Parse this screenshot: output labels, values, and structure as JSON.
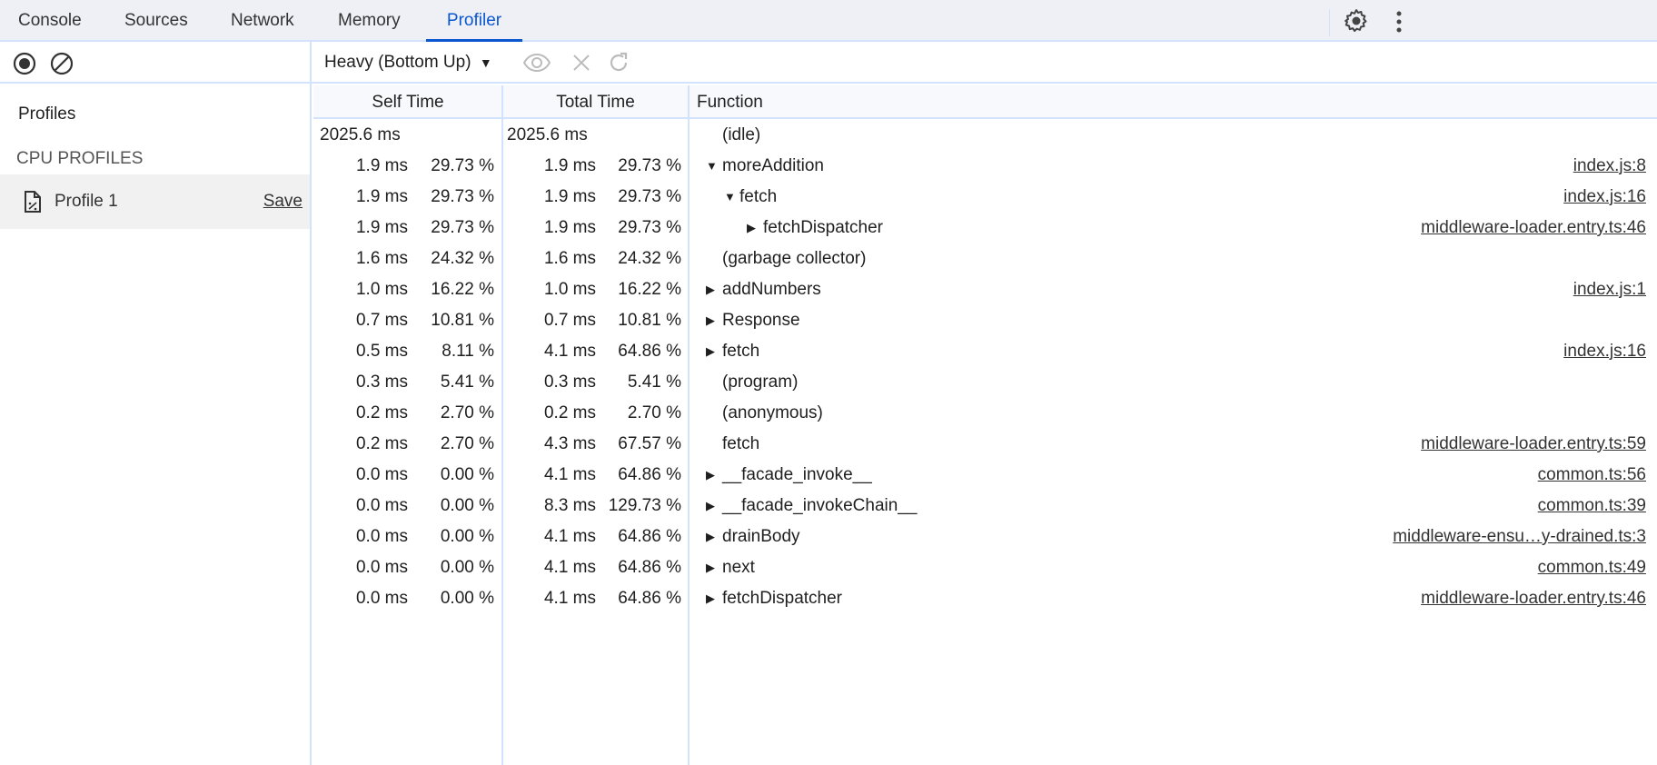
{
  "tabs": [
    {
      "label": "Console"
    },
    {
      "label": "Sources"
    },
    {
      "label": "Network"
    },
    {
      "label": "Memory"
    },
    {
      "label": "Profiler",
      "active": true
    }
  ],
  "icons": {
    "settings": "gear-icon",
    "more": "kebab-menu-icon",
    "record": "record-icon",
    "clear": "clear-icon",
    "focus": "eye-icon",
    "exclude": "close-icon",
    "restore": "reload-icon",
    "profile": "cpu-profile-file-icon"
  },
  "colors": {
    "accent": "#0b57d0",
    "border": "#d3e3fd",
    "tabbar": "#eef0f5",
    "selected_row": "#f1f1f1"
  },
  "toolbar": {
    "view_select": "Heavy (Bottom Up)"
  },
  "sidebar": {
    "title": "Profiles",
    "section": "CPU PROFILES",
    "profile": {
      "name": "Profile 1",
      "save": "Save"
    }
  },
  "table": {
    "headers": {
      "self": "Self Time",
      "total": "Total Time",
      "function": "Function"
    },
    "rows": [
      {
        "self": "2025.6 ms",
        "self_pct": "",
        "total": "2025.6 ms",
        "total_pct": "",
        "level": 0,
        "arrow": "",
        "name": "(idle)",
        "url": ""
      },
      {
        "self": "1.9 ms",
        "self_pct": "29.73 %",
        "total": "1.9 ms",
        "total_pct": "29.73 %",
        "level": 0,
        "arrow": "down",
        "name": "moreAddition",
        "url": "index.js:8"
      },
      {
        "self": "1.9 ms",
        "self_pct": "29.73 %",
        "total": "1.9 ms",
        "total_pct": "29.73 %",
        "level": 1,
        "arrow": "down",
        "name": "fetch",
        "url": "index.js:16"
      },
      {
        "self": "1.9 ms",
        "self_pct": "29.73 %",
        "total": "1.9 ms",
        "total_pct": "29.73 %",
        "level": 2,
        "arrow": "right",
        "name": "fetchDispatcher",
        "url": "middleware-loader.entry.ts:46"
      },
      {
        "self": "1.6 ms",
        "self_pct": "24.32 %",
        "total": "1.6 ms",
        "total_pct": "24.32 %",
        "level": 0,
        "arrow": "",
        "name": "(garbage collector)",
        "url": ""
      },
      {
        "self": "1.0 ms",
        "self_pct": "16.22 %",
        "total": "1.0 ms",
        "total_pct": "16.22 %",
        "level": 0,
        "arrow": "right",
        "name": "addNumbers",
        "url": "index.js:1"
      },
      {
        "self": "0.7 ms",
        "self_pct": "10.81 %",
        "total": "0.7 ms",
        "total_pct": "10.81 %",
        "level": 0,
        "arrow": "right",
        "name": "Response",
        "url": ""
      },
      {
        "self": "0.5 ms",
        "self_pct": "8.11 %",
        "total": "4.1 ms",
        "total_pct": "64.86 %",
        "level": 0,
        "arrow": "right",
        "name": "fetch",
        "url": "index.js:16"
      },
      {
        "self": "0.3 ms",
        "self_pct": "5.41 %",
        "total": "0.3 ms",
        "total_pct": "5.41 %",
        "level": 0,
        "arrow": "",
        "name": "(program)",
        "url": ""
      },
      {
        "self": "0.2 ms",
        "self_pct": "2.70 %",
        "total": "0.2 ms",
        "total_pct": "2.70 %",
        "level": 0,
        "arrow": "",
        "name": "(anonymous)",
        "url": ""
      },
      {
        "self": "0.2 ms",
        "self_pct": "2.70 %",
        "total": "4.3 ms",
        "total_pct": "67.57 %",
        "level": 0,
        "arrow": "",
        "name": "fetch",
        "url": "middleware-loader.entry.ts:59"
      },
      {
        "self": "0.0 ms",
        "self_pct": "0.00 %",
        "total": "4.1 ms",
        "total_pct": "64.86 %",
        "level": 0,
        "arrow": "right",
        "name": "__facade_invoke__",
        "url": "common.ts:56"
      },
      {
        "self": "0.0 ms",
        "self_pct": "0.00 %",
        "total": "8.3 ms",
        "total_pct": "129.73 %",
        "level": 0,
        "arrow": "right",
        "name": "__facade_invokeChain__",
        "url": "common.ts:39"
      },
      {
        "self": "0.0 ms",
        "self_pct": "0.00 %",
        "total": "4.1 ms",
        "total_pct": "64.86 %",
        "level": 0,
        "arrow": "right",
        "name": "drainBody",
        "url": "middleware-ensu…y-drained.ts:3"
      },
      {
        "self": "0.0 ms",
        "self_pct": "0.00 %",
        "total": "4.1 ms",
        "total_pct": "64.86 %",
        "level": 0,
        "arrow": "right",
        "name": "next",
        "url": "common.ts:49"
      },
      {
        "self": "0.0 ms",
        "self_pct": "0.00 %",
        "total": "4.1 ms",
        "total_pct": "64.86 %",
        "level": 0,
        "arrow": "right",
        "name": "fetchDispatcher",
        "url": "middleware-loader.entry.ts:46"
      }
    ]
  }
}
